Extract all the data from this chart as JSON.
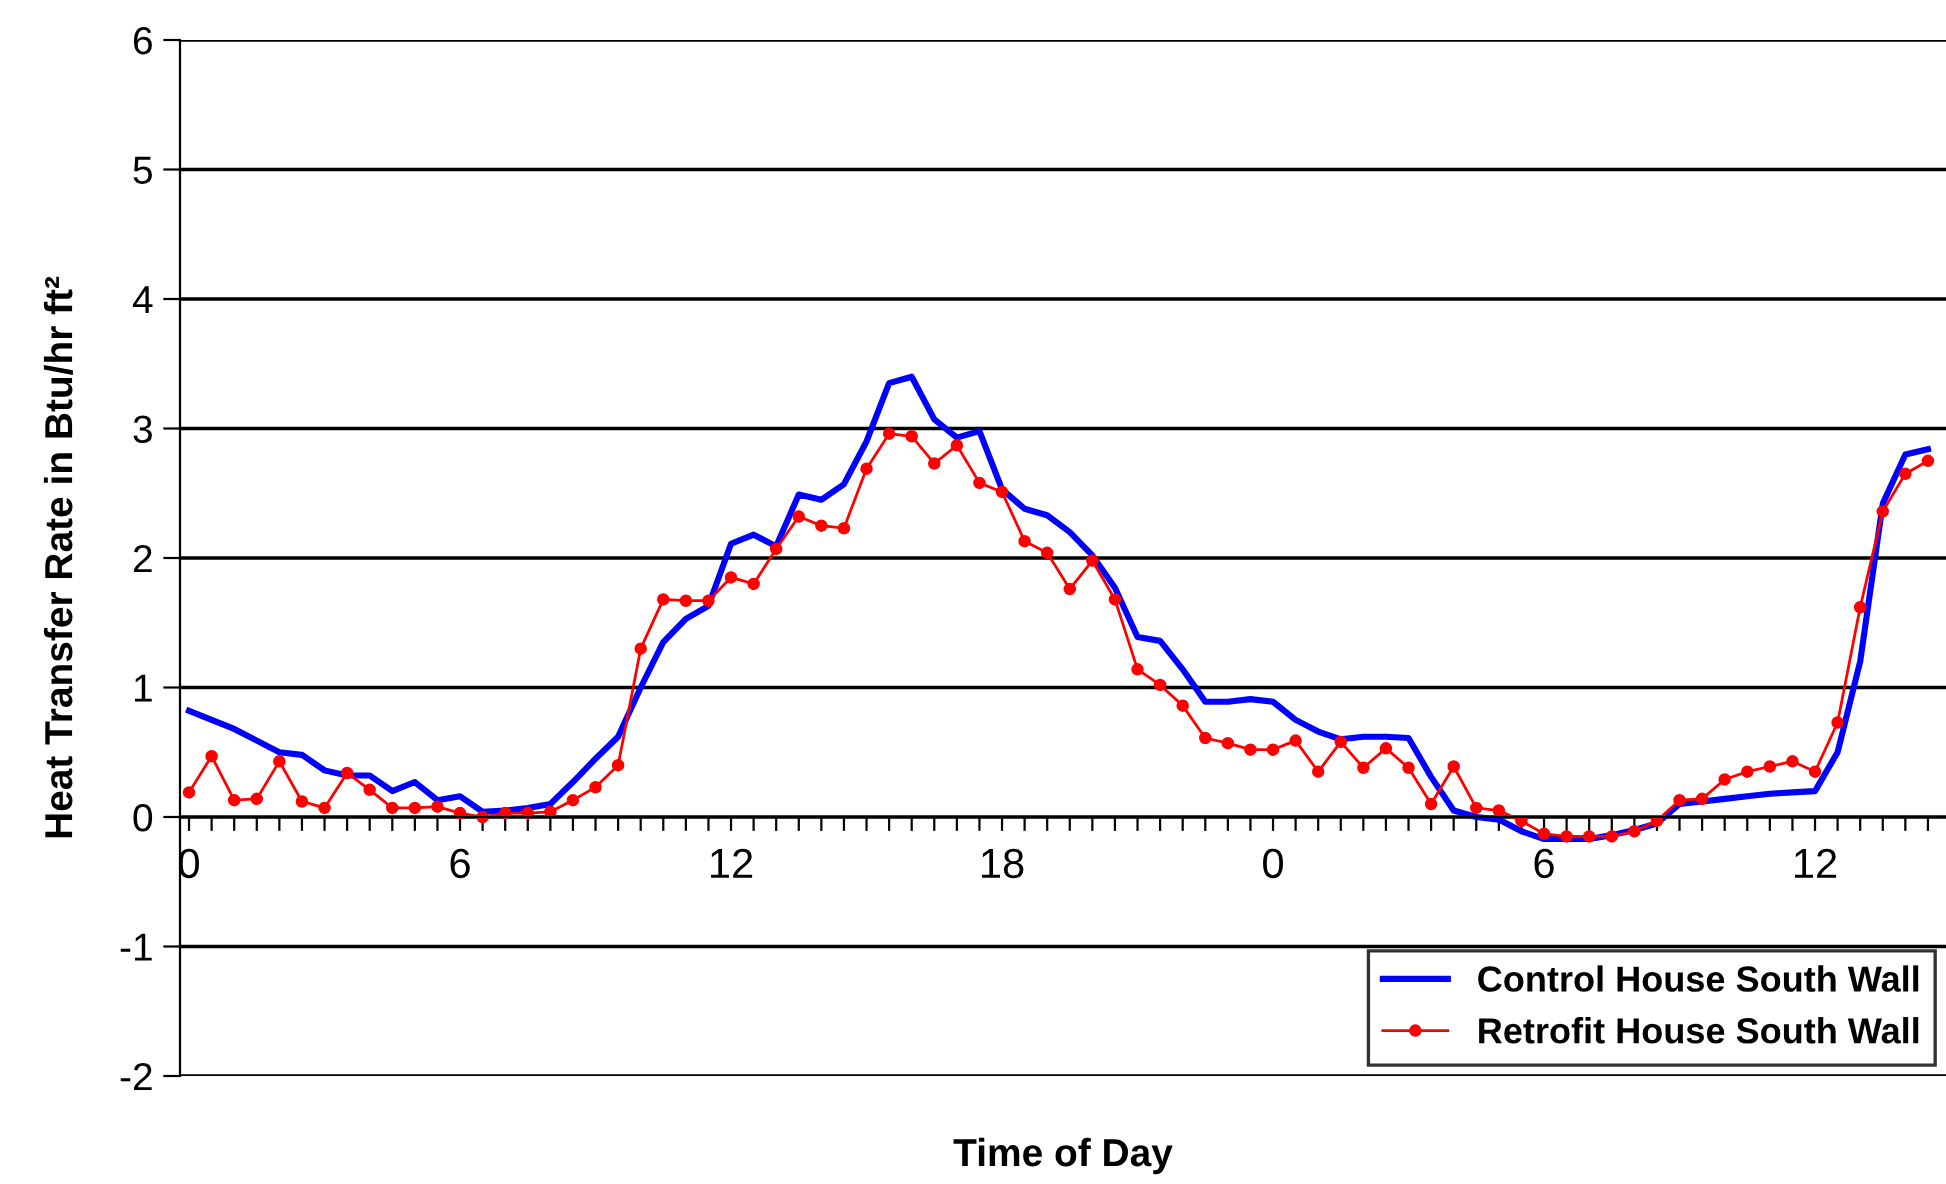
{
  "chart_data": {
    "type": "line",
    "xlabel": "Time of Day",
    "ylabel": "Heat Transfer Rate in Btu/hr ft²",
    "ylim": [
      -2,
      6
    ],
    "yticks": [
      -2,
      -1,
      0,
      1,
      2,
      3,
      4,
      5,
      6
    ],
    "categories": [
      "0",
      null,
      null,
      null,
      null,
      null,
      null,
      null,
      null,
      null,
      null,
      null,
      "6",
      null,
      null,
      null,
      null,
      null,
      null,
      null,
      null,
      null,
      null,
      null,
      "12",
      null,
      null,
      null,
      null,
      null,
      null,
      null,
      null,
      null,
      null,
      null,
      "18",
      null,
      null,
      null,
      null,
      null,
      null,
      null,
      null,
      null,
      null,
      null,
      "0",
      null,
      null,
      null,
      null,
      null,
      null,
      null,
      null,
      null,
      null,
      null,
      "6",
      null,
      null,
      null,
      null,
      null,
      null,
      null,
      null,
      null,
      null,
      null,
      "12",
      null,
      null,
      null,
      null,
      null
    ],
    "grid": "y",
    "legend": "bottom right",
    "series": [
      {
        "name": "Control House South Wall",
        "color": "#0000ff",
        "marker": "none",
        "values": [
          0.82,
          0.75,
          0.68,
          0.59,
          0.5,
          0.48,
          0.36,
          0.32,
          0.32,
          0.2,
          0.27,
          0.13,
          0.16,
          0.04,
          0.05,
          0.07,
          0.1,
          0.27,
          0.45,
          0.62,
          1.0,
          1.35,
          1.53,
          1.63,
          2.11,
          2.18,
          2.09,
          2.49,
          2.45,
          2.57,
          2.9,
          3.35,
          3.4,
          3.07,
          2.93,
          2.98,
          2.53,
          2.38,
          2.33,
          2.2,
          2.02,
          1.77,
          1.39,
          1.36,
          1.14,
          0.89,
          0.89,
          0.91,
          0.89,
          0.75,
          0.66,
          0.6,
          0.62,
          0.62,
          0.61,
          0.31,
          0.05,
          0.0,
          -0.02,
          -0.11,
          -0.17,
          -0.17,
          -0.17,
          -0.14,
          -0.1,
          -0.05,
          0.1,
          0.12,
          0.14,
          0.16,
          0.18,
          0.19,
          0.2,
          0.5,
          1.2,
          2.42,
          2.8,
          2.84
        ]
      },
      {
        "name": "Retrofit House South Wall",
        "color": "#ff0000",
        "marker": "circle",
        "values": [
          0.19,
          0.47,
          0.13,
          0.14,
          0.43,
          0.12,
          0.07,
          0.34,
          0.21,
          0.07,
          0.07,
          0.08,
          0.03,
          0.0,
          0.03,
          0.03,
          0.04,
          0.13,
          0.23,
          0.4,
          1.3,
          1.68,
          1.67,
          1.67,
          1.85,
          1.8,
          2.07,
          2.32,
          2.25,
          2.23,
          2.69,
          2.96,
          2.94,
          2.73,
          2.87,
          2.58,
          2.51,
          2.13,
          2.04,
          1.76,
          1.98,
          1.68,
          1.14,
          1.02,
          0.86,
          0.61,
          0.57,
          0.52,
          0.52,
          0.59,
          0.35,
          0.58,
          0.38,
          0.53,
          0.38,
          0.1,
          0.39,
          0.07,
          0.05,
          -0.03,
          -0.13,
          -0.15,
          -0.15,
          -0.15,
          -0.11,
          -0.03,
          0.13,
          0.14,
          0.29,
          0.35,
          0.39,
          0.43,
          0.35,
          0.73,
          1.62,
          2.36,
          2.65,
          2.75
        ]
      }
    ]
  }
}
